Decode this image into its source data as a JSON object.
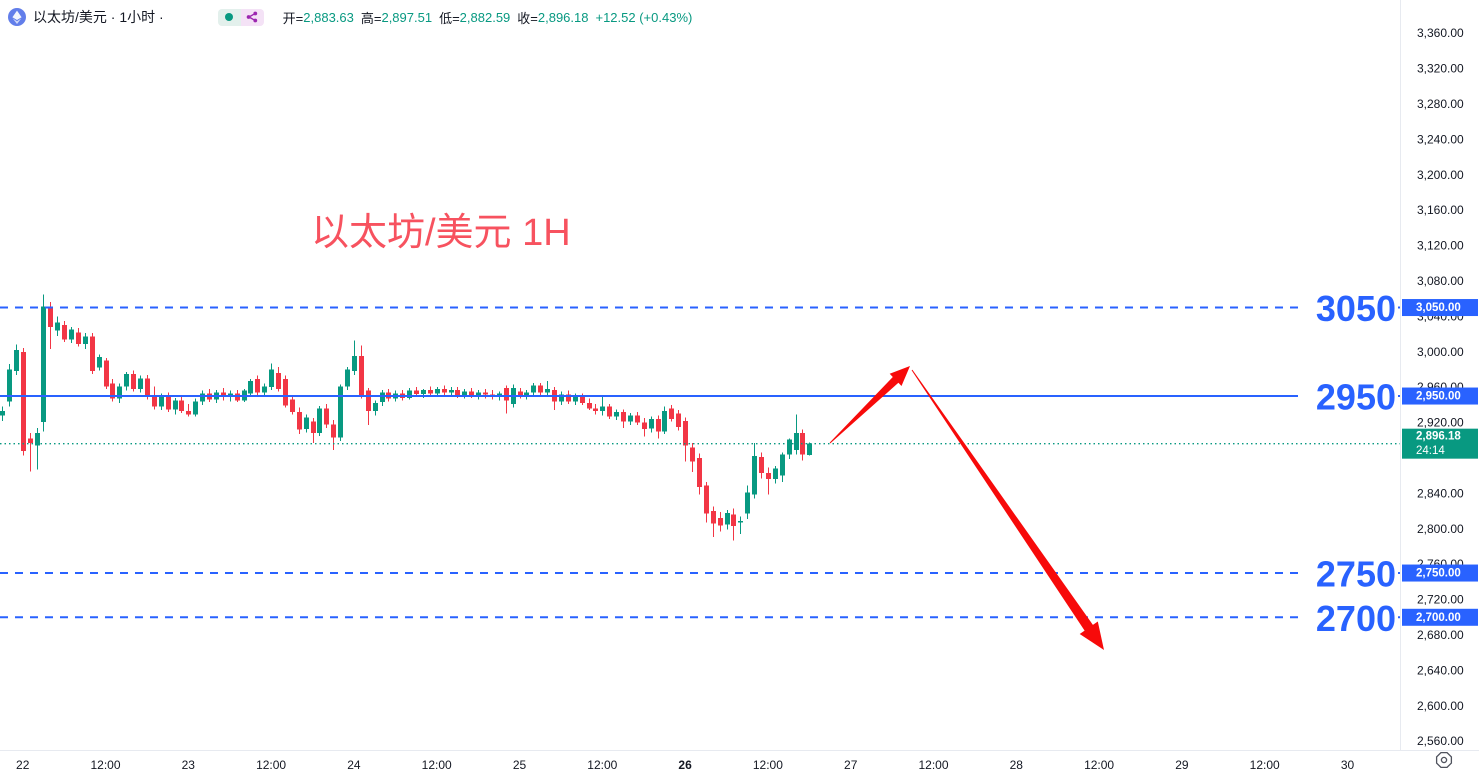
{
  "header": {
    "symbol_title": "以太坊/美元 · 1小时 ·",
    "status_dot_color": "#089981",
    "share_icon_color": "#9c27b0",
    "ohlc": {
      "items": [
        {
          "label": "开=",
          "value": "2,883.63"
        },
        {
          "label": "高=",
          "value": "2,897.51"
        },
        {
          "label": "低=",
          "value": "2,882.59"
        },
        {
          "label": "收=",
          "value": "2,896.18"
        }
      ],
      "change": "+12.52 (+0.43%)",
      "value_color": "#089981"
    }
  },
  "annotation_title": {
    "text": "以太坊/美元 1H",
    "color": "#F7525F"
  },
  "icons": {
    "symbol_logo": "ethereum-icon",
    "legend_status": "market-status-dot",
    "legend_share": "share-icon",
    "axis_corner": "axis-settings-icon"
  },
  "chart_data": {
    "type": "candlestick",
    "symbol": "以太坊/美元",
    "interval": "1小时",
    "up_color": "#089981",
    "down_color": "#F23645",
    "level_color": "#2962FF",
    "arrow_color": "#F70A0A",
    "grid": "off",
    "legend_position": "top-left",
    "ylim": [
      2560,
      3360
    ],
    "price_axis": {
      "ticks": [
        {
          "p": 3360,
          "label": "3,360.00"
        },
        {
          "p": 3320,
          "label": "3,320.00"
        },
        {
          "p": 3280,
          "label": "3,280.00"
        },
        {
          "p": 3240,
          "label": "3,240.00"
        },
        {
          "p": 3200,
          "label": "3,200.00"
        },
        {
          "p": 3160,
          "label": "3,160.00"
        },
        {
          "p": 3120,
          "label": "3,120.00"
        },
        {
          "p": 3080,
          "label": "3,080.00"
        },
        {
          "p": 3040,
          "label": "3,040.00"
        },
        {
          "p": 3000,
          "label": "3,000.00"
        },
        {
          "p": 2960,
          "label": "2,960.00"
        },
        {
          "p": 2920,
          "label": "2,920.00"
        },
        {
          "p": 2840,
          "label": "2,840.00"
        },
        {
          "p": 2800,
          "label": "2,800.00"
        },
        {
          "p": 2760,
          "label": "2,760.00"
        },
        {
          "p": 2720,
          "label": "2,720.00"
        },
        {
          "p": 2680,
          "label": "2,680.00"
        },
        {
          "p": 2640,
          "label": "2,640.00"
        },
        {
          "p": 2600,
          "label": "2,600.00"
        },
        {
          "p": 2560,
          "label": "2,560.00"
        }
      ]
    },
    "time_axis": {
      "labels": [
        "22",
        "12:00",
        "23",
        "12:00",
        "24",
        "12:00",
        "25",
        "12:00",
        "26",
        "12:00",
        "27",
        "12:00",
        "28",
        "12:00",
        "29",
        "12:00",
        "30"
      ],
      "bold_index": 8
    },
    "levels": [
      {
        "price": 3050,
        "label": "3050",
        "axis_label": "3,050.00",
        "style": "dashed"
      },
      {
        "price": 2950,
        "label": "2950",
        "axis_label": "2,950.00",
        "style": "solid"
      },
      {
        "price": 2750,
        "label": "2750",
        "axis_label": "2,750.00",
        "style": "dashed"
      },
      {
        "price": 2700,
        "label": "2700",
        "axis_label": "2,700.00",
        "style": "dashed"
      }
    ],
    "last_price": {
      "price": 2896.18,
      "axis_label": "2,896.18",
      "countdown": "24:14",
      "color": "#089981"
    },
    "arrows": [
      {
        "dir": "up",
        "from": [
          830,
          443
        ],
        "to": [
          910,
          366
        ]
      },
      {
        "dir": "down",
        "from": [
          912,
          370
        ],
        "to": [
          1104,
          650
        ]
      }
    ],
    "candles": [
      [
        2928,
        2938,
        2922,
        2933
      ],
      [
        2944,
        2986,
        2938,
        2980
      ],
      [
        2978,
        3008,
        2974,
        3002
      ],
      [
        3000,
        3004,
        2883,
        2888
      ],
      [
        2902,
        2908,
        2865,
        2897
      ],
      [
        2894,
        2914,
        2867,
        2908
      ],
      [
        2921,
        3065,
        2910,
        3051
      ],
      [
        3051,
        3056,
        3003,
        3028
      ],
      [
        3024,
        3040,
        3018,
        3033
      ],
      [
        3030,
        3035,
        3011,
        3014
      ],
      [
        3014,
        3028,
        3010,
        3025
      ],
      [
        3022,
        3027,
        3006,
        3009
      ],
      [
        3009,
        3021,
        3003,
        3017
      ],
      [
        3017,
        3021,
        2975,
        2978
      ],
      [
        2982,
        2997,
        2979,
        2994
      ],
      [
        2990,
        2993,
        2958,
        2961
      ],
      [
        2964,
        2969,
        2944,
        2947
      ],
      [
        2947,
        2964,
        2942,
        2961
      ],
      [
        2961,
        2977,
        2956,
        2975
      ],
      [
        2975,
        2979,
        2955,
        2958
      ],
      [
        2958,
        2973,
        2954,
        2970
      ],
      [
        2970,
        2974,
        2946,
        2949
      ],
      [
        2949,
        2961,
        2935,
        2938
      ],
      [
        2938,
        2953,
        2934,
        2950
      ],
      [
        2950,
        2954,
        2932,
        2935
      ],
      [
        2935,
        2948,
        2929,
        2945
      ],
      [
        2945,
        2949,
        2931,
        2933
      ],
      [
        2933,
        2941,
        2927,
        2929
      ],
      [
        2929,
        2947,
        2927,
        2944
      ],
      [
        2944,
        2956,
        2940,
        2953
      ],
      [
        2953,
        2958,
        2943,
        2946
      ],
      [
        2946,
        2957,
        2942,
        2954
      ],
      [
        2954,
        2959,
        2945,
        2949
      ],
      [
        2949,
        2956,
        2944,
        2953
      ],
      [
        2953,
        2957,
        2943,
        2945
      ],
      [
        2945,
        2958,
        2943,
        2956
      ],
      [
        2953,
        2969,
        2950,
        2967
      ],
      [
        2969,
        2973,
        2951,
        2954
      ],
      [
        2954,
        2964,
        2949,
        2961
      ],
      [
        2960,
        2987,
        2957,
        2980
      ],
      [
        2976,
        2983,
        2955,
        2958
      ],
      [
        2969,
        2973,
        2937,
        2939
      ],
      [
        2946,
        2951,
        2929,
        2932
      ],
      [
        2932,
        2937,
        2907,
        2912
      ],
      [
        2913,
        2929,
        2909,
        2926
      ],
      [
        2921,
        2925,
        2897,
        2908
      ],
      [
        2908,
        2939,
        2905,
        2936
      ],
      [
        2936,
        2941,
        2914,
        2918
      ],
      [
        2918,
        2923,
        2889,
        2903
      ],
      [
        2903,
        2963,
        2899,
        2961
      ],
      [
        2961,
        2983,
        2957,
        2980
      ],
      [
        2978,
        3013,
        2974,
        2995
      ],
      [
        2995,
        3007,
        2947,
        2950
      ],
      [
        2956,
        2959,
        2917,
        2933
      ],
      [
        2933,
        2945,
        2928,
        2942
      ],
      [
        2943,
        2957,
        2939,
        2954
      ],
      [
        2954,
        2958,
        2944,
        2947
      ],
      [
        2947,
        2956,
        2944,
        2953
      ],
      [
        2953,
        2957,
        2945,
        2948
      ],
      [
        2948,
        2959,
        2946,
        2956
      ],
      [
        2956,
        2960,
        2949,
        2952
      ],
      [
        2952,
        2958,
        2948,
        2957
      ],
      [
        2957,
        2961,
        2950,
        2953
      ],
      [
        2953,
        2960,
        2949,
        2958
      ],
      [
        2958,
        2962,
        2951,
        2954
      ],
      [
        2954,
        2960,
        2949,
        2957
      ],
      [
        2957,
        2960,
        2948,
        2951
      ],
      [
        2951,
        2958,
        2947,
        2955
      ],
      [
        2955,
        2959,
        2948,
        2950
      ],
      [
        2950,
        2957,
        2946,
        2954
      ],
      [
        2954,
        2958,
        2947,
        2952
      ],
      [
        2952,
        2957,
        2946,
        2950
      ],
      [
        2950,
        2955,
        2945,
        2953
      ],
      [
        2959,
        2962,
        2930,
        2945
      ],
      [
        2941,
        2963,
        2937,
        2959
      ],
      [
        2955,
        2959,
        2947,
        2950
      ],
      [
        2950,
        2957,
        2946,
        2954
      ],
      [
        2954,
        2965,
        2950,
        2962
      ],
      [
        2962,
        2965,
        2951,
        2954
      ],
      [
        2954,
        2967,
        2950,
        2958
      ],
      [
        2957,
        2960,
        2934,
        2944
      ],
      [
        2944,
        2955,
        2940,
        2952
      ],
      [
        2952,
        2956,
        2941,
        2944
      ],
      [
        2944,
        2953,
        2940,
        2950
      ],
      [
        2950,
        2953,
        2940,
        2942
      ],
      [
        2942,
        2947,
        2934,
        2936
      ],
      [
        2936,
        2941,
        2929,
        2933
      ],
      [
        2933,
        2949,
        2928,
        2938
      ],
      [
        2938,
        2941,
        2924,
        2927
      ],
      [
        2927,
        2935,
        2923,
        2932
      ],
      [
        2932,
        2935,
        2914,
        2921
      ],
      [
        2921,
        2931,
        2917,
        2928
      ],
      [
        2928,
        2932,
        2917,
        2920
      ],
      [
        2920,
        2925,
        2904,
        2913
      ],
      [
        2913,
        2927,
        2909,
        2924
      ],
      [
        2924,
        2928,
        2902,
        2910
      ],
      [
        2910,
        2938,
        2907,
        2933
      ],
      [
        2936,
        2940,
        2921,
        2924
      ],
      [
        2930,
        2934,
        2911,
        2915
      ],
      [
        2922,
        2926,
        2876,
        2894
      ],
      [
        2892,
        2897,
        2864,
        2876
      ],
      [
        2880,
        2885,
        2839,
        2847
      ],
      [
        2849,
        2853,
        2807,
        2817
      ],
      [
        2820,
        2825,
        2791,
        2806
      ],
      [
        2812,
        2819,
        2797,
        2804
      ],
      [
        2805,
        2821,
        2799,
        2818
      ],
      [
        2816,
        2823,
        2787,
        2803
      ],
      [
        2807,
        2814,
        2794,
        2809
      ],
      [
        2817,
        2849,
        2811,
        2841
      ],
      [
        2839,
        2897,
        2834,
        2882
      ],
      [
        2881,
        2886,
        2857,
        2863
      ],
      [
        2863,
        2869,
        2839,
        2856
      ],
      [
        2856,
        2871,
        2851,
        2868
      ],
      [
        2860,
        2886,
        2853,
        2884
      ],
      [
        2884,
        2902,
        2879,
        2901
      ],
      [
        2889,
        2929,
        2884,
        2908
      ],
      [
        2908,
        2912,
        2877,
        2884
      ],
      [
        2883.63,
        2897.51,
        2882.59,
        2896.18
      ]
    ]
  }
}
